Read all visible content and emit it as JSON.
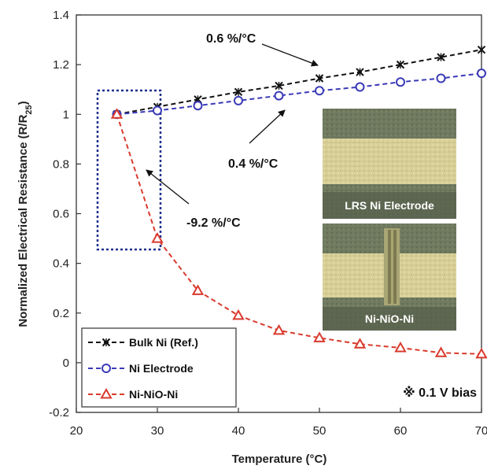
{
  "chart_data": {
    "type": "line",
    "xlabel": "Temperature (°C)",
    "ylabel_main": "Normalized Electrical Resistance (R/R",
    "ylabel_sub": "25",
    "ylabel_end": ")",
    "xlim": [
      20,
      70
    ],
    "ylim": [
      -0.2,
      1.4
    ],
    "x_ticks": [
      "20",
      "30",
      "40",
      "50",
      "60",
      "70"
    ],
    "y_ticks": [
      "-0.2",
      "0",
      "0.2",
      "0.4",
      "0.6",
      "0.8",
      "1",
      "1.2",
      "1.4"
    ],
    "x_tick_values": [
      20,
      30,
      40,
      50,
      60,
      70
    ],
    "y_tick_values": [
      -0.2,
      0,
      0.2,
      0.4,
      0.6,
      0.8,
      1,
      1.2,
      1.4
    ],
    "x": [
      25,
      30,
      35,
      40,
      45,
      50,
      55,
      60,
      65,
      70
    ],
    "series": [
      {
        "name": "Bulk Ni (Ref.)",
        "color": "#111111",
        "marker": "x",
        "values": [
          1.0,
          1.03,
          1.06,
          1.09,
          1.115,
          1.145,
          1.17,
          1.2,
          1.23,
          1.26
        ]
      },
      {
        "name": "Ni Electrode",
        "color": "#3a3ab8",
        "marker": "circle",
        "values": [
          1.0,
          1.015,
          1.035,
          1.055,
          1.075,
          1.095,
          1.11,
          1.13,
          1.145,
          1.165
        ]
      },
      {
        "name": "Ni-NiO-Ni",
        "color": "#d93a2e",
        "marker": "triangle",
        "values": [
          1.0,
          0.5,
          0.29,
          0.19,
          0.13,
          0.1,
          0.075,
          0.06,
          0.04,
          0.035
        ]
      }
    ],
    "annotations": {
      "bulk_slope": "0.6 %/°C",
      "electrode_slope": "0.4 %/°C",
      "nio_slope": "-9.2 %/°C",
      "bias": "※ 0.1 V bias"
    },
    "inset_photos": [
      "LRS Ni Electrode",
      "Ni-NiO-Ni"
    ],
    "legend_position": "bottom-left",
    "grid": false
  }
}
